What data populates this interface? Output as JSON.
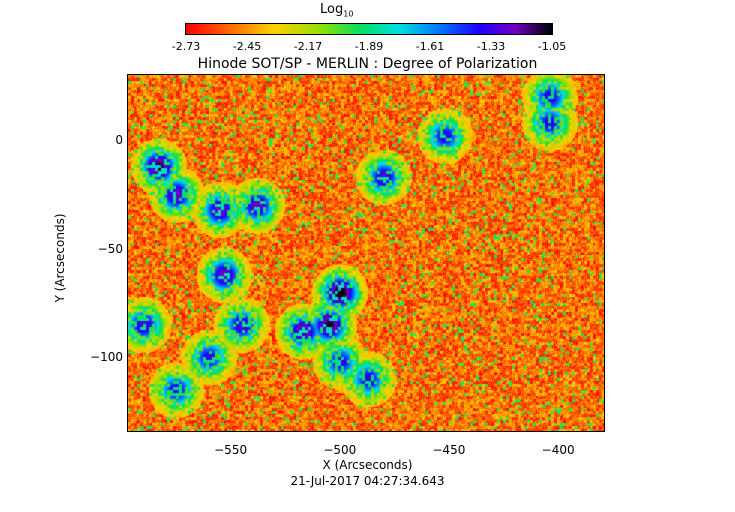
{
  "colorbar": {
    "title": "Log",
    "title_sub": "10",
    "tick_labels": [
      "-2.73",
      "-2.45",
      "-2.17",
      "-1.89",
      "-1.61",
      "-1.33",
      "-1.05"
    ]
  },
  "title": "Hinode SOT/SP - MERLIN : Degree of Polarization",
  "date": "21-Jul-2017 04:27:34.643",
  "chart_data": {
    "type": "heatmap",
    "title": "Hinode SOT/SP - MERLIN : Degree of Polarization",
    "xlabel": "X (Arcseconds)",
    "ylabel": "Y (Arcseconds)",
    "xlim": [
      -597,
      -379
    ],
    "ylim": [
      -134,
      30
    ],
    "x_ticks": [
      -550,
      -500,
      -450,
      -400
    ],
    "y_ticks": [
      0,
      -50,
      -100
    ],
    "colorbar_range": [
      -2.73,
      -1.05
    ],
    "colorbar_ticks": [
      -2.73,
      -2.45,
      -2.17,
      -1.89,
      -1.61,
      -1.33,
      -1.05
    ],
    "colormap": "rainbow",
    "dominant_level": -2.5,
    "features": [
      {
        "x": -583,
        "y": -12,
        "level": -1.4
      },
      {
        "x": -575,
        "y": -25,
        "level": -1.5
      },
      {
        "x": -555,
        "y": -32,
        "level": -1.5
      },
      {
        "x": -553,
        "y": -62,
        "level": -1.5
      },
      {
        "x": -538,
        "y": -30,
        "level": -1.5
      },
      {
        "x": -500,
        "y": -70,
        "level": -1.35
      },
      {
        "x": -505,
        "y": -85,
        "level": -1.4
      },
      {
        "x": -517,
        "y": -88,
        "level": -1.45
      },
      {
        "x": -545,
        "y": -85,
        "level": -1.55
      },
      {
        "x": -590,
        "y": -85,
        "level": -1.55
      },
      {
        "x": -500,
        "y": -102,
        "level": -1.6
      },
      {
        "x": -487,
        "y": -110,
        "level": -1.6
      },
      {
        "x": -480,
        "y": -17,
        "level": -1.55
      },
      {
        "x": -452,
        "y": 2,
        "level": -1.6
      },
      {
        "x": -404,
        "y": 20,
        "level": -1.6
      },
      {
        "x": -404,
        "y": 8,
        "level": -1.6
      },
      {
        "x": -560,
        "y": -100,
        "level": -1.6
      },
      {
        "x": -575,
        "y": -115,
        "level": -1.6
      }
    ]
  }
}
